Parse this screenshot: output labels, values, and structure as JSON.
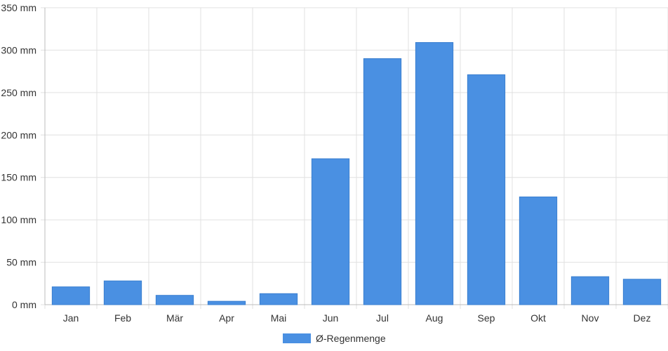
{
  "chart_data": {
    "type": "bar",
    "categories": [
      "Jan",
      "Feb",
      "Mär",
      "Apr",
      "Mai",
      "Jun",
      "Jul",
      "Aug",
      "Sep",
      "Okt",
      "Nov",
      "Dez"
    ],
    "series": [
      {
        "name": "Ø-Regenmenge",
        "values": [
          21,
          28,
          11,
          4,
          13,
          172,
          290,
          309,
          271,
          127,
          33,
          30
        ],
        "color": "#4a90e2"
      }
    ],
    "y_ticks": [
      "0 mm",
      "50 mm",
      "100 mm",
      "150 mm",
      "200 mm",
      "250 mm",
      "300 mm",
      "350 mm"
    ],
    "ylim": [
      0,
      350
    ],
    "unit": "mm",
    "grid": true,
    "legend_position": "bottom"
  }
}
